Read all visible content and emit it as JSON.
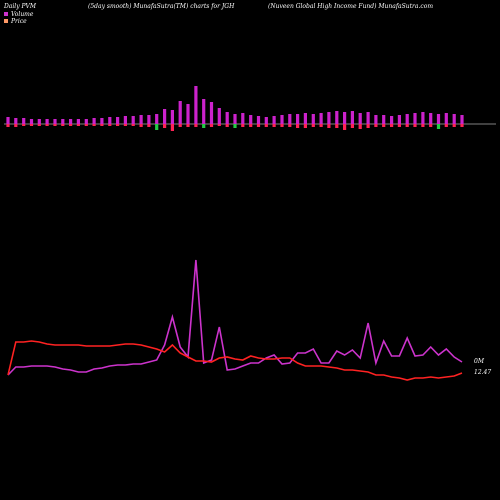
{
  "header": {
    "left": "Daily PVM",
    "middle": "(5day smooth) MunafaSutra(TM) charts for JGH",
    "right": "(Nuveen  Global High Income  Fund) MunafaSutra.com"
  },
  "legend": {
    "items": [
      {
        "label": "Volume",
        "color": "#cc33cc"
      },
      {
        "label": "Price",
        "color": "#ff9966"
      }
    ]
  },
  "chart_data": {
    "type": "bar+line",
    "volume_axis_label": "0M",
    "price_axis_label": "12.47",
    "colors": {
      "volume_up": "#cc22cc",
      "volume_down": "#ff2255",
      "volume_green": "#22cc44",
      "volume_line": "#cc33cc",
      "price_line": "#ff2222",
      "baseline": "#aaaaaa"
    },
    "volume_bars": [
      {
        "up": 7,
        "down": 3,
        "color": "mixed"
      },
      {
        "up": 6,
        "down": 3,
        "color": "mixed"
      },
      {
        "up": 6,
        "down": 2,
        "color": "mixed"
      },
      {
        "up": 5,
        "down": 2,
        "color": "mixed"
      },
      {
        "up": 5,
        "down": 2,
        "color": "mixed"
      },
      {
        "up": 5,
        "down": 2,
        "color": "mixed"
      },
      {
        "up": 5,
        "down": 2,
        "color": "mixed"
      },
      {
        "up": 5,
        "down": 2,
        "color": "mixed"
      },
      {
        "up": 5,
        "down": 2,
        "color": "mixed"
      },
      {
        "up": 5,
        "down": 2,
        "color": "mixed"
      },
      {
        "up": 5,
        "down": 2,
        "color": "mixed"
      },
      {
        "up": 6,
        "down": 2,
        "color": "mixed"
      },
      {
        "up": 6,
        "down": 2,
        "color": "mixed"
      },
      {
        "up": 7,
        "down": 2,
        "color": "mixed"
      },
      {
        "up": 7,
        "down": 2,
        "color": "mixed"
      },
      {
        "up": 8,
        "down": 2,
        "color": "mixed"
      },
      {
        "up": 8,
        "down": 2,
        "color": "mixed"
      },
      {
        "up": 9,
        "down": 3,
        "color": "mixed"
      },
      {
        "up": 9,
        "down": 3,
        "color": "mixed"
      },
      {
        "up": 10,
        "down": 6,
        "color": "green"
      },
      {
        "up": 15,
        "down": 4,
        "color": "mixed"
      },
      {
        "up": 14,
        "down": 7,
        "color": "red"
      },
      {
        "up": 23,
        "down": 3,
        "color": "mixed"
      },
      {
        "up": 20,
        "down": 3,
        "color": "mixed"
      },
      {
        "up": 38,
        "down": 3,
        "color": "mixed"
      },
      {
        "up": 25,
        "down": 4,
        "color": "green"
      },
      {
        "up": 22,
        "down": 3,
        "color": "mixed"
      },
      {
        "up": 16,
        "down": 2,
        "color": "mixed"
      },
      {
        "up": 12,
        "down": 3,
        "color": "mixed"
      },
      {
        "up": 10,
        "down": 4,
        "color": "green"
      },
      {
        "up": 11,
        "down": 3,
        "color": "mixed"
      },
      {
        "up": 9,
        "down": 3,
        "color": "mixed"
      },
      {
        "up": 8,
        "down": 3,
        "color": "mixed"
      },
      {
        "up": 7,
        "down": 3,
        "color": "mixed"
      },
      {
        "up": 8,
        "down": 3,
        "color": "mixed"
      },
      {
        "up": 9,
        "down": 3,
        "color": "mixed"
      },
      {
        "up": 10,
        "down": 3,
        "color": "mixed"
      },
      {
        "up": 10,
        "down": 4,
        "color": "mixed"
      },
      {
        "up": 11,
        "down": 4,
        "color": "mixed"
      },
      {
        "up": 10,
        "down": 3,
        "color": "mixed"
      },
      {
        "up": 11,
        "down": 3,
        "color": "mixed"
      },
      {
        "up": 12,
        "down": 4,
        "color": "mixed"
      },
      {
        "up": 13,
        "down": 4,
        "color": "mixed"
      },
      {
        "up": 12,
        "down": 6,
        "color": "red"
      },
      {
        "up": 13,
        "down": 4,
        "color": "mixed"
      },
      {
        "up": 11,
        "down": 5,
        "color": "red"
      },
      {
        "up": 12,
        "down": 4,
        "color": "mixed"
      },
      {
        "up": 9,
        "down": 3,
        "color": "mixed"
      },
      {
        "up": 9,
        "down": 3,
        "color": "mixed"
      },
      {
        "up": 8,
        "down": 3,
        "color": "mixed"
      },
      {
        "up": 9,
        "down": 3,
        "color": "mixed"
      },
      {
        "up": 10,
        "down": 3,
        "color": "mixed"
      },
      {
        "up": 11,
        "down": 3,
        "color": "mixed"
      },
      {
        "up": 12,
        "down": 3,
        "color": "mixed"
      },
      {
        "up": 11,
        "down": 3,
        "color": "mixed"
      },
      {
        "up": 10,
        "down": 5,
        "color": "green"
      },
      {
        "up": 11,
        "down": 3,
        "color": "mixed"
      },
      {
        "up": 10,
        "down": 3,
        "color": "mixed"
      },
      {
        "up": 9,
        "down": 3,
        "color": "mixed"
      }
    ],
    "volume_line": [
      375,
      367,
      367,
      366,
      366,
      366,
      367,
      369,
      370,
      372,
      372,
      369,
      368,
      366,
      365,
      365,
      364,
      364,
      362,
      360,
      345,
      317,
      347,
      357,
      260,
      363,
      360,
      327,
      370,
      369,
      366,
      363,
      363,
      358,
      355,
      364,
      363,
      353,
      353,
      349,
      363,
      363,
      351,
      355,
      350,
      358,
      323,
      363,
      341,
      356,
      356,
      338,
      356,
      355,
      347,
      355,
      349,
      357,
      362
    ],
    "price_line": [
      375,
      342,
      342,
      341,
      342,
      344,
      345,
      345,
      345,
      345,
      346,
      346,
      346,
      346,
      345,
      344,
      344,
      345,
      347,
      349,
      352,
      345,
      353,
      357,
      361,
      361,
      362,
      358,
      357,
      359,
      360,
      356,
      358,
      359,
      359,
      358,
      358,
      363,
      366,
      366,
      366,
      367,
      368,
      370,
      370,
      371,
      372,
      375,
      375,
      377,
      378,
      380,
      378,
      378,
      377,
      378,
      377,
      376,
      373
    ]
  }
}
